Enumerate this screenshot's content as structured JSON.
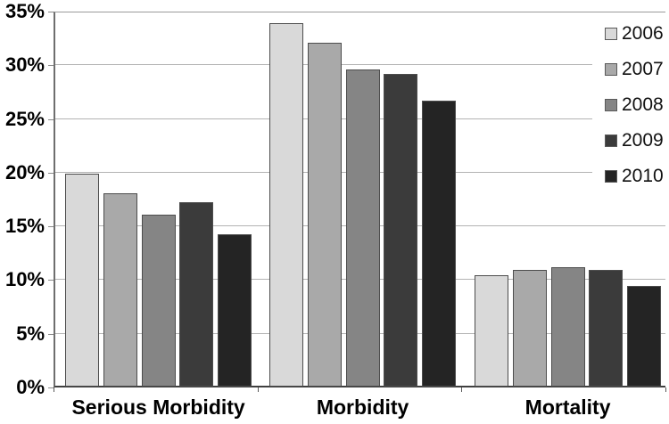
{
  "chart_data": {
    "type": "bar",
    "title": "",
    "xlabel": "",
    "ylabel": "",
    "categories": [
      "Serious Morbidity",
      "Morbidity",
      "Mortality"
    ],
    "series": [
      {
        "name": "2006",
        "color": "#d9d9d9",
        "values": [
          19.8,
          33.8,
          10.4
        ]
      },
      {
        "name": "2007",
        "color": "#a9a9a9",
        "values": [
          18.0,
          32.0,
          10.9
        ]
      },
      {
        "name": "2008",
        "color": "#858585",
        "values": [
          16.0,
          29.5,
          11.1
        ]
      },
      {
        "name": "2009",
        "color": "#3b3b3b",
        "values": [
          17.2,
          29.1,
          10.9
        ]
      },
      {
        "name": "2010",
        "color": "#242424",
        "values": [
          14.2,
          26.6,
          9.4
        ]
      }
    ],
    "ylim": [
      0,
      35
    ],
    "ytick_step": 5,
    "ytick_labels": [
      "0%",
      "5%",
      "10%",
      "15%",
      "20%",
      "25%",
      "30%",
      "35%"
    ],
    "grid": true,
    "legend_position": "top-right",
    "colors": {
      "bar_border": "#4d4d4d",
      "gridline": "#b3b3b3",
      "axis_line": "#3f3f3f",
      "plot_border": "#9a9a9a",
      "text": "#000000",
      "background": "#ffffff"
    }
  }
}
